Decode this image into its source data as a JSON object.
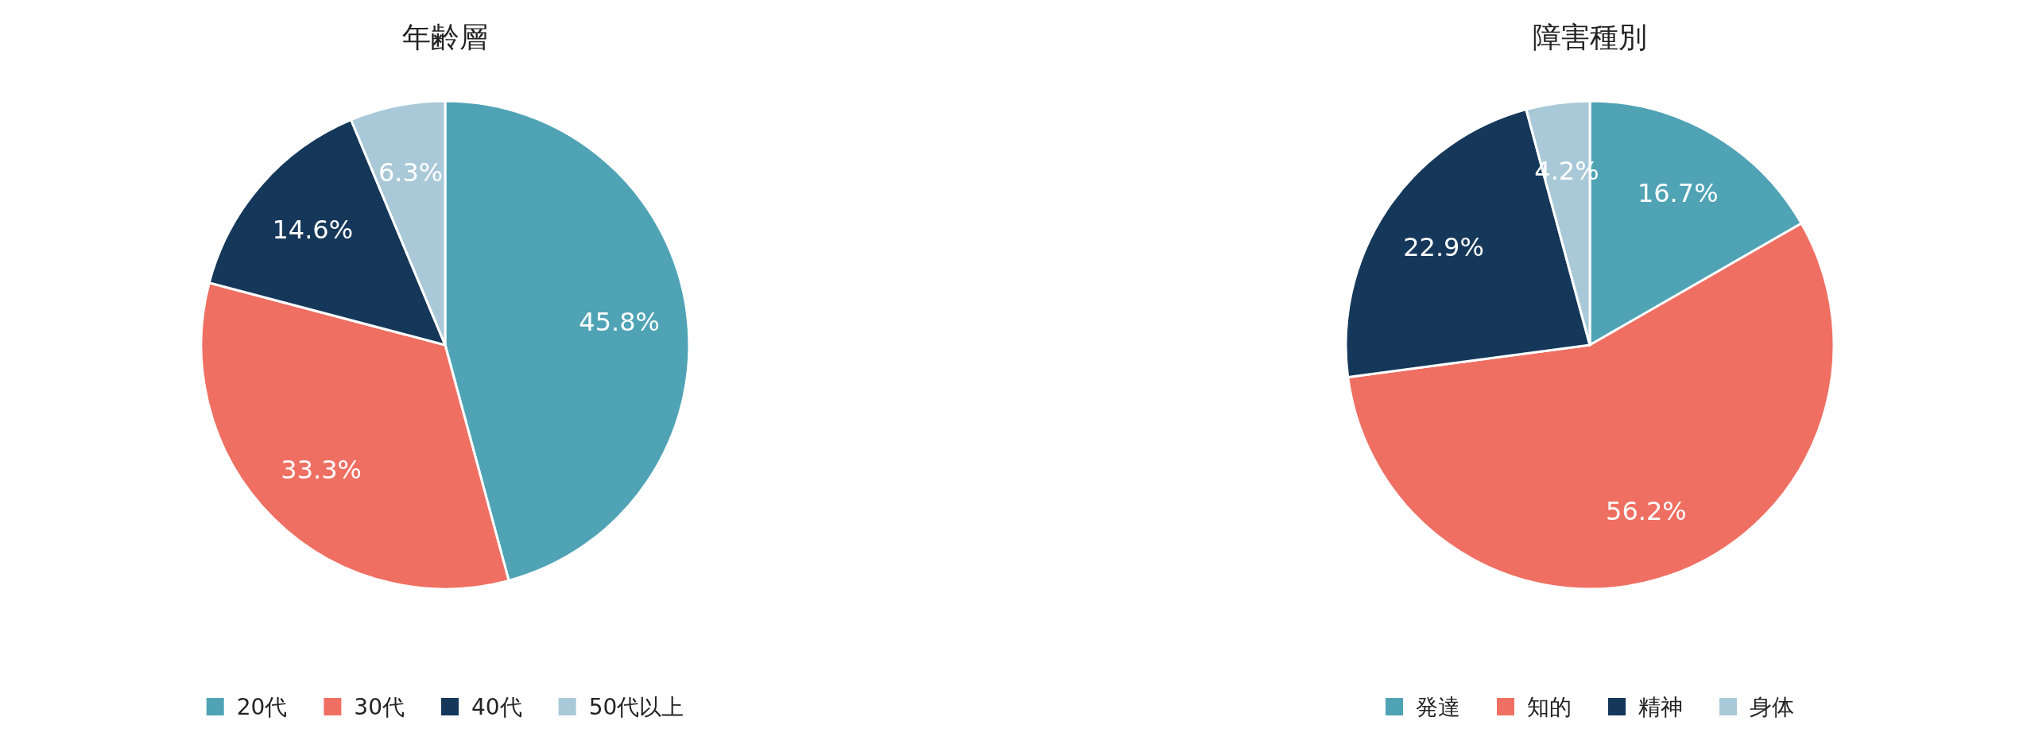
{
  "chart_data": [
    {
      "type": "pie",
      "title": "年齢層",
      "categories": [
        "20代",
        "30代",
        "40代",
        "50代以上"
      ],
      "values": [
        45.8,
        33.3,
        14.6,
        6.3
      ],
      "value_labels": [
        "45.8%",
        "33.3%",
        "14.6%",
        "6.3%"
      ],
      "colors": [
        "#4fa3b5",
        "#ef6f62",
        "#15385a",
        "#a9c9d8"
      ],
      "legend": "bottom"
    },
    {
      "type": "pie",
      "title": "障害種別",
      "categories": [
        "発達",
        "知的",
        "精神",
        "身体"
      ],
      "values": [
        16.7,
        56.2,
        22.9,
        4.2
      ],
      "value_labels": [
        "16.7%",
        "56.2%",
        "22.9%",
        "4.2%"
      ],
      "colors": [
        "#4fa3b5",
        "#ef6f62",
        "#15385a",
        "#a9c9d8"
      ],
      "legend": "bottom"
    }
  ]
}
